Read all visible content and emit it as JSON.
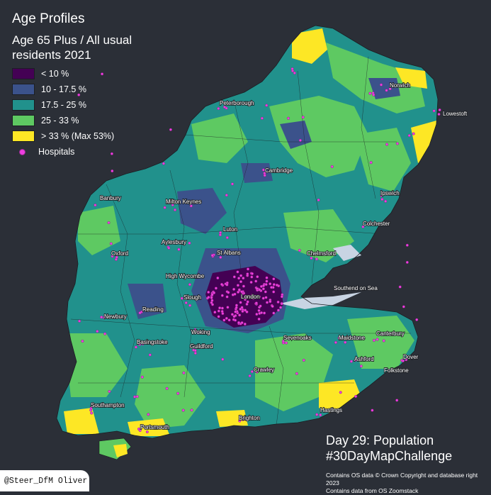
{
  "title": "Age Profiles",
  "subtitle": "Age 65 Plus / All usual residents 2021",
  "legend": [
    {
      "label": "< 10 %",
      "color": "#440154"
    },
    {
      "label": "10 - 17.5 %",
      "color": "#3b528b"
    },
    {
      "label": "17.5 - 25 %",
      "color": "#21918c"
    },
    {
      "label": "25 - 33 %",
      "color": "#5ec962"
    },
    {
      "label": "> 33 % (Max 53%)",
      "color": "#fde725"
    }
  ],
  "hospitals_label": "Hospitals",
  "places": [
    "Norwich",
    "Lowestoft",
    "Peterborough",
    "Cambridge",
    "Banbury",
    "Ipswich",
    "Milton Keynes",
    "Colchester",
    "Luton",
    "Oxford",
    "Aylesbury",
    "St Albans",
    "Chelmsford",
    "High Wycombe",
    "London",
    "Southend on Sea",
    "Slough",
    "Reading",
    "Newbury",
    "Sevenoaks",
    "Maidstone",
    "Canterbury",
    "Woking",
    "Basingstoke",
    "Guildford",
    "Ashford",
    "Dover",
    "Folkstone",
    "Crawley",
    "Southampton",
    "Hastings",
    "Brighton",
    "Portsmouth"
  ],
  "footer": {
    "day": "Day 29: Population",
    "hashtag": "#30DayMapChallenge",
    "credit1": "Contains OS data © Crown Copyright and database right 2023",
    "credit2": "Contains data from OS Zoomstack"
  },
  "author": "@Steer_DfM Oliver"
}
